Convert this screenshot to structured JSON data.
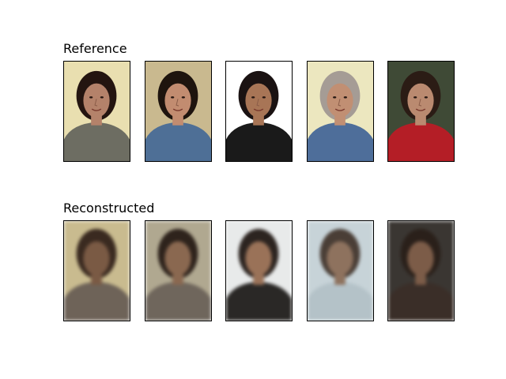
{
  "figure": {
    "rows": [
      {
        "title": "Reference",
        "kind": "original",
        "images": [
          {
            "name": "woman-curly-hair-gray-sweater",
            "bg": "#e9dfb0",
            "hair": "#241510",
            "skin": "#b4826a",
            "cloth": "#6d6d62"
          },
          {
            "name": "young-man-blue-shirt",
            "bg": "#c9b98f",
            "hair": "#1e140e",
            "skin": "#c28c70",
            "cloth": "#4e6f96"
          },
          {
            "name": "woman-profile-dark-hair",
            "bg": "#ffffff",
            "hair": "#1a1212",
            "skin": "#a87556",
            "cloth": "#1a1a1a"
          },
          {
            "name": "older-man-denim-jacket",
            "bg": "#ece7bf",
            "hair": "#a59c95",
            "skin": "#c18f73",
            "cloth": "#4e6e9a"
          },
          {
            "name": "young-man-red-hood",
            "bg": "#3f4a36",
            "hair": "#2b1c15",
            "skin": "#ba8a70",
            "cloth": "#b41e26"
          }
        ]
      },
      {
        "title": "Reconstructed",
        "kind": "reconstruction",
        "images": [
          {
            "name": "reconstruction-1",
            "bg": "#c9bb8f",
            "hair": "#3a2a20",
            "skin": "#7a5a44",
            "cloth": "#6e6358"
          },
          {
            "name": "reconstruction-2",
            "bg": "#b0a890",
            "hair": "#2e231c",
            "skin": "#8a6850",
            "cloth": "#6f665c"
          },
          {
            "name": "reconstruction-3",
            "bg": "#e8eaea",
            "hair": "#2c2420",
            "skin": "#9a7258",
            "cloth": "#2a2826"
          },
          {
            "name": "reconstruction-4",
            "bg": "#c7d3d8",
            "hair": "#4a3e36",
            "skin": "#8e725e",
            "cloth": "#b4c2c8"
          },
          {
            "name": "reconstruction-5",
            "bg": "#3a3632",
            "hair": "#2a201a",
            "skin": "#7c5c48",
            "cloth": "#3a2e28"
          }
        ]
      }
    ]
  }
}
